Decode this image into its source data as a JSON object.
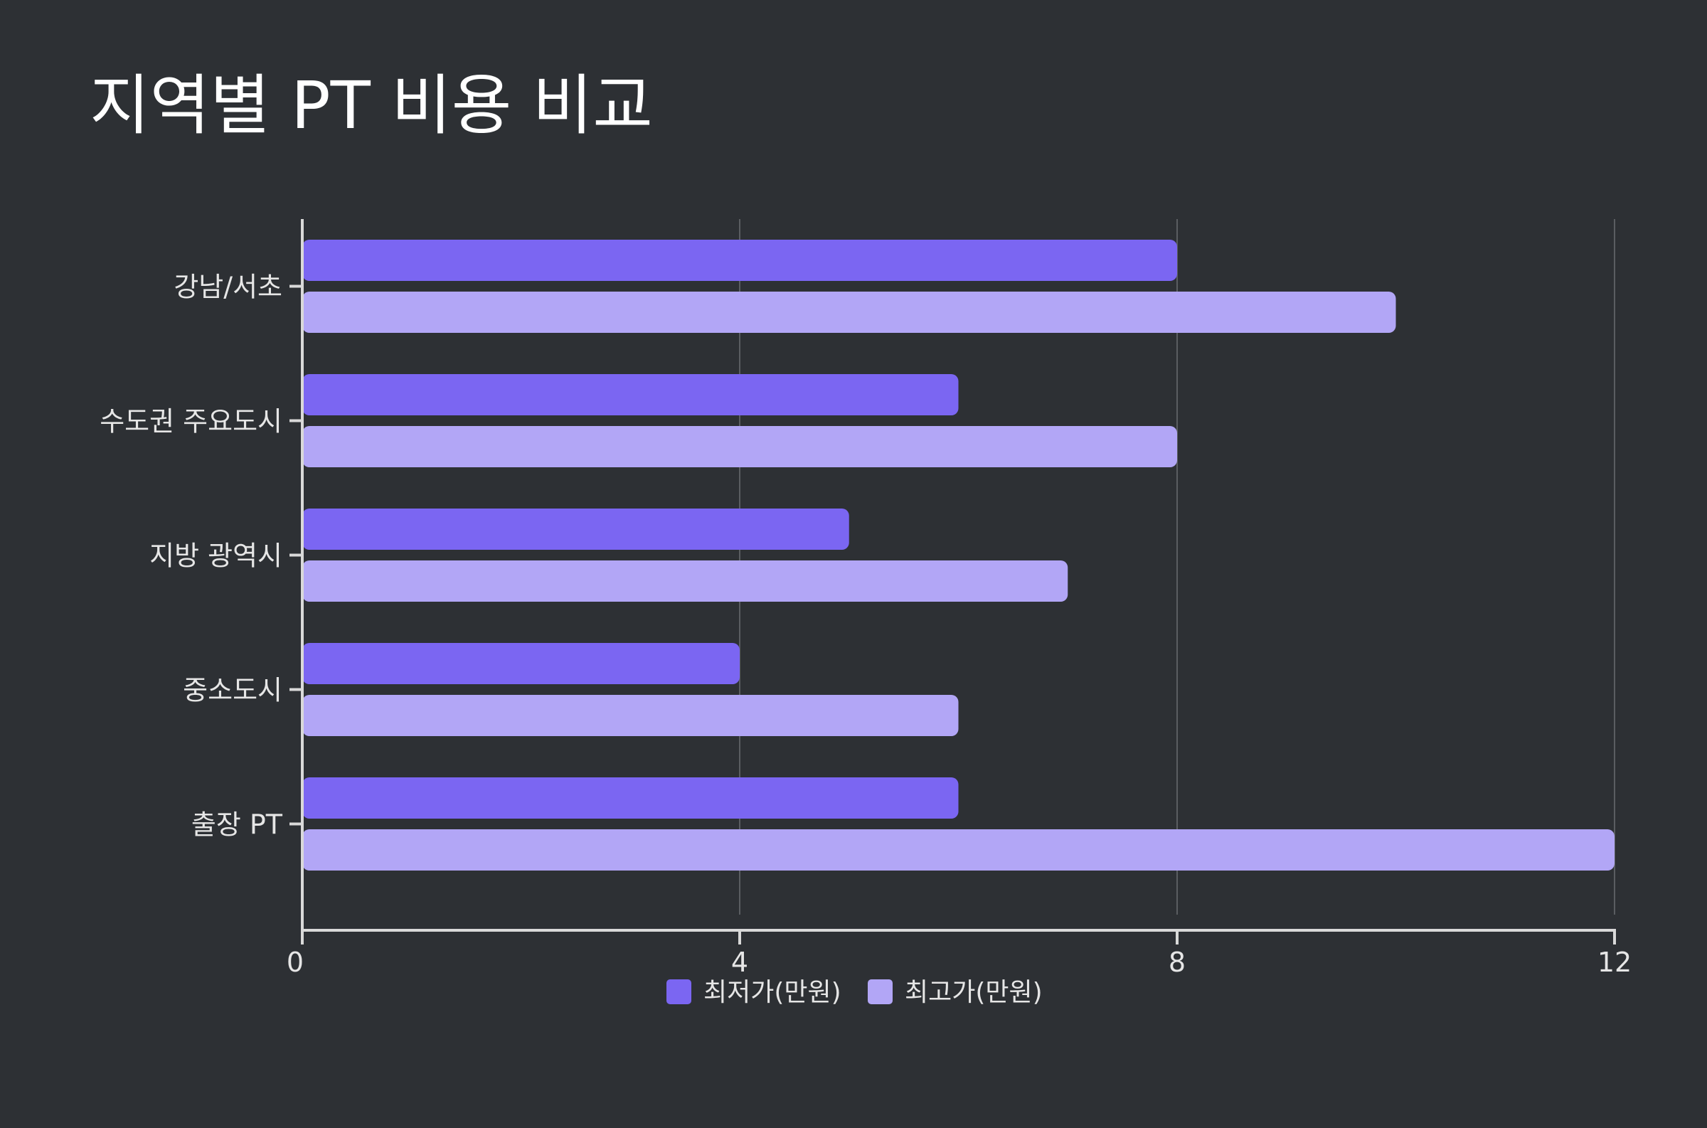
{
  "chart_data": {
    "type": "bar",
    "orientation": "horizontal",
    "title": "지역별 PT 비용 비교",
    "xlabel": "",
    "ylabel": "",
    "categories": [
      "강남/서초",
      "수도권 주요도시",
      "지방 광역시",
      "중소도시",
      "출장 PT"
    ],
    "series": [
      {
        "name": "최저가(만원)",
        "color": "#7b66f2",
        "values": [
          8,
          6,
          5,
          4,
          6
        ]
      },
      {
        "name": "최고가(만원)",
        "color": "#b2a6f6",
        "values": [
          10,
          8,
          7,
          6,
          12
        ]
      }
    ],
    "xlim": [
      0,
      12
    ],
    "xticks": [
      0,
      4,
      8,
      12
    ],
    "grid": true,
    "legend": "bottom-center"
  },
  "colors": {
    "background": "#2d3034",
    "text": "#e6e6e6",
    "axis": "#d9d9d9",
    "grid": "#5a5d61"
  }
}
